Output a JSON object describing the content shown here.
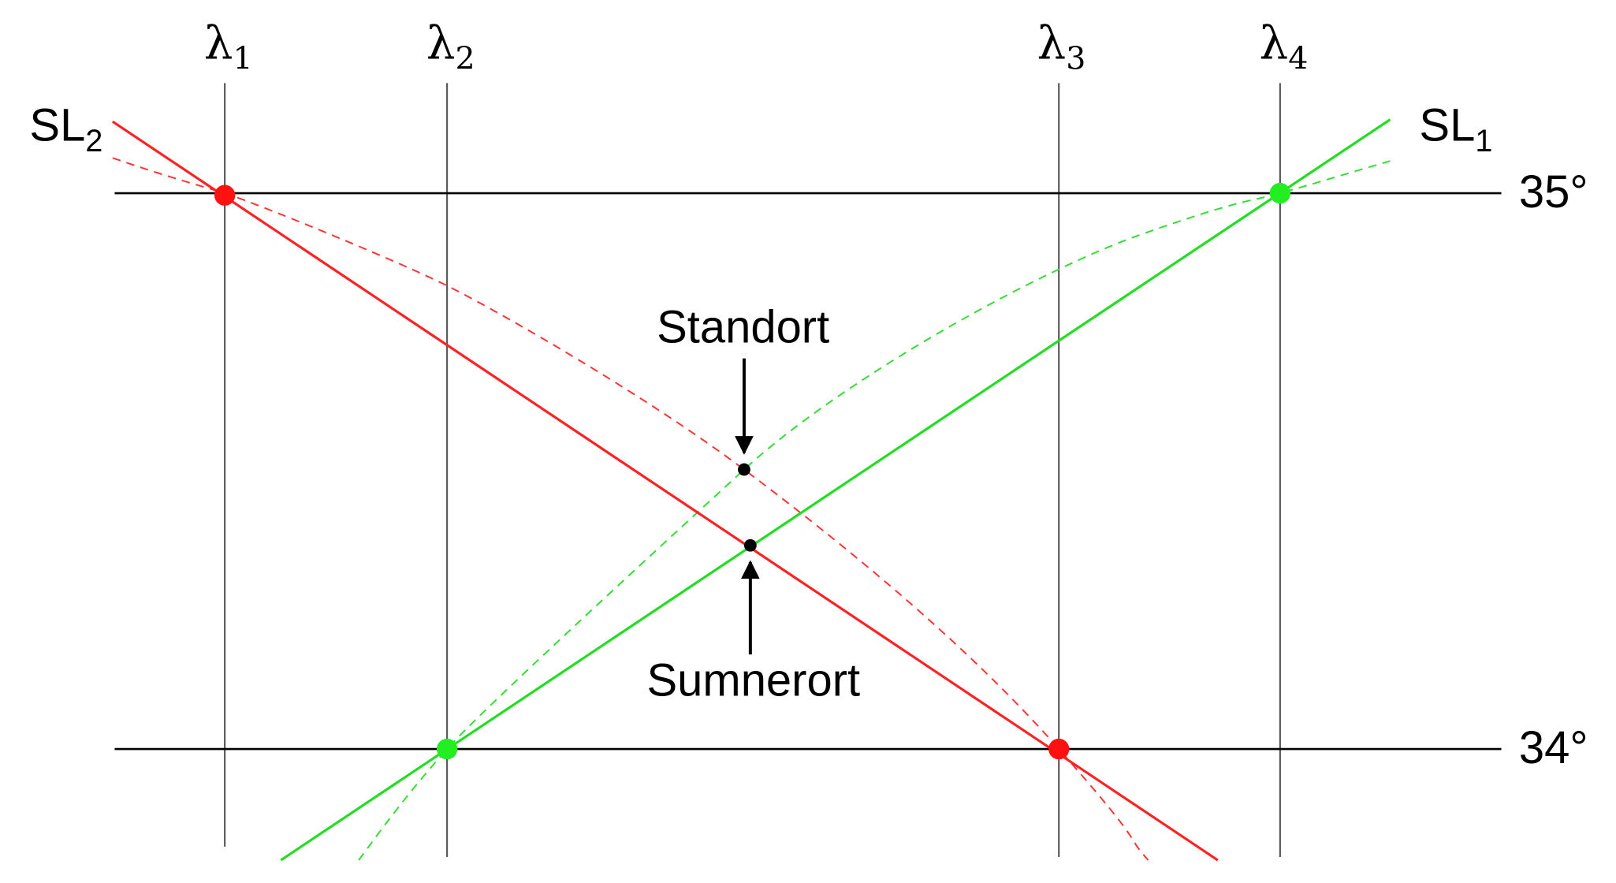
{
  "meridians": [
    {
      "symbol": "λ",
      "index": "1"
    },
    {
      "symbol": "λ",
      "index": "2"
    },
    {
      "symbol": "λ",
      "index": "3"
    },
    {
      "symbol": "λ",
      "index": "4"
    }
  ],
  "parallels": [
    "35°",
    "34°"
  ],
  "lines": [
    {
      "name": "SL",
      "index": "1"
    },
    {
      "name": "SL",
      "index": "2"
    }
  ],
  "points": [
    "Standort",
    "Sumnerort"
  ]
}
